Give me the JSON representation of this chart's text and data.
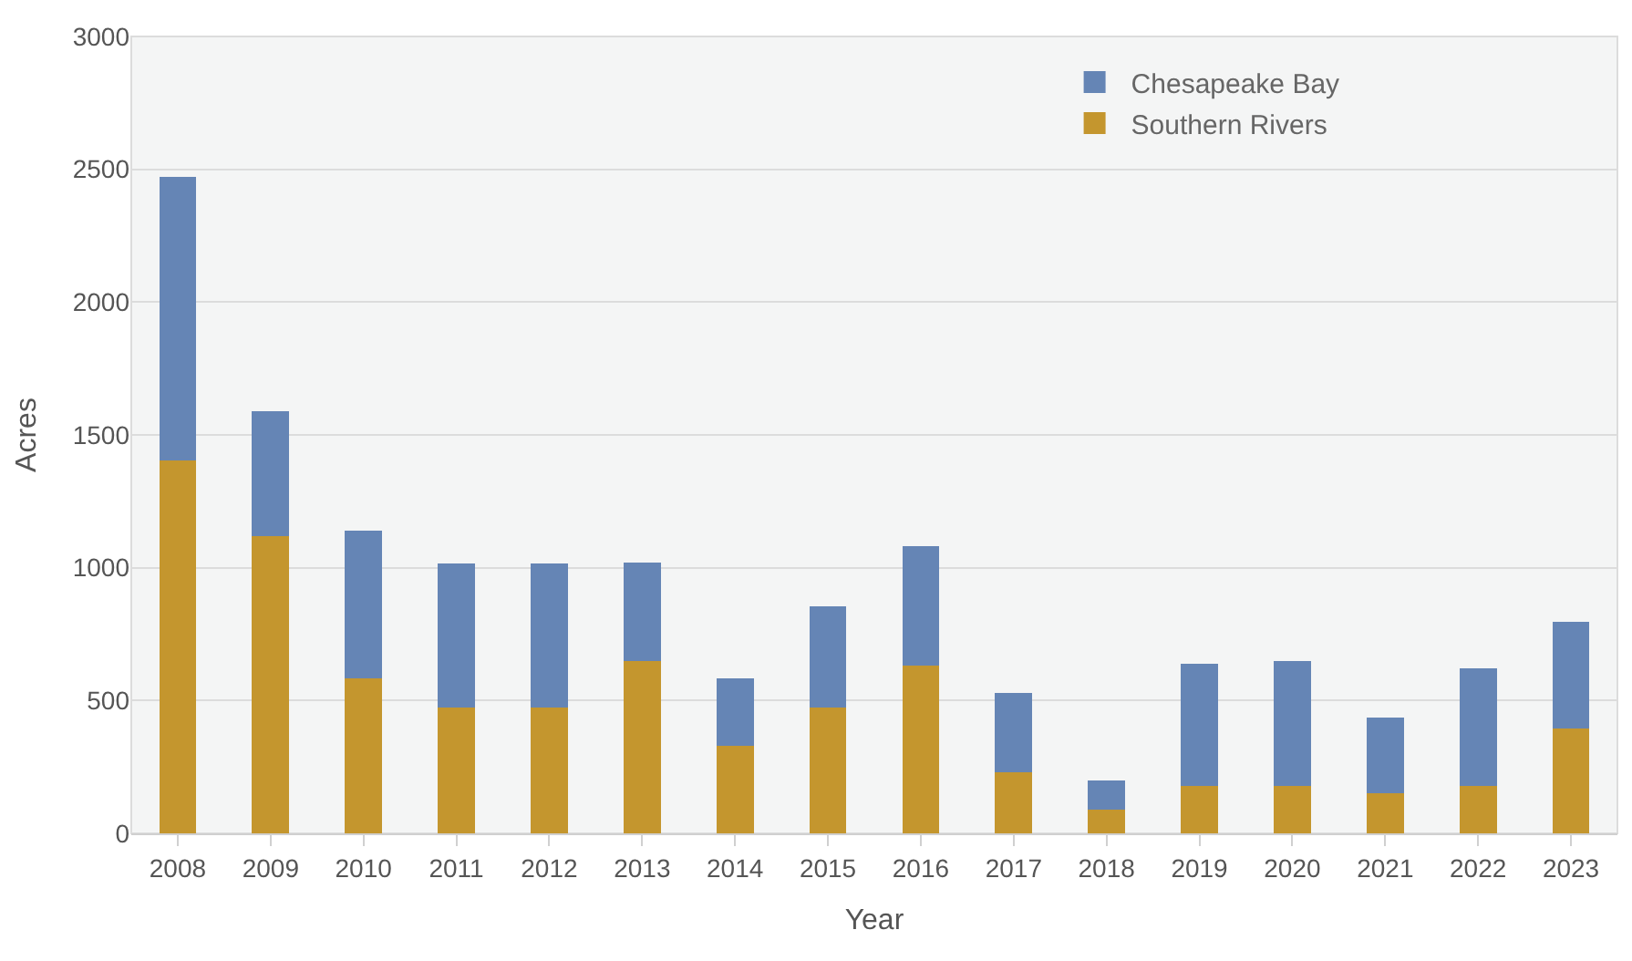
{
  "chart_data": {
    "type": "bar",
    "stacked": true,
    "xlabel": "Year",
    "ylabel": "Acres",
    "categories": [
      "2008",
      "2009",
      "2010",
      "2011",
      "2012",
      "2013",
      "2014",
      "2015",
      "2016",
      "2017",
      "2018",
      "2019",
      "2020",
      "2021",
      "2022",
      "2023"
    ],
    "series": [
      {
        "name": "Southern Rivers",
        "color": "#c4962e",
        "values": [
          1405,
          1120,
          585,
          475,
          475,
          650,
          330,
          475,
          630,
          230,
          90,
          180,
          180,
          150,
          180,
          395
        ]
      },
      {
        "name": "Chesapeake Bay",
        "color": "#6585b5",
        "values": [
          1065,
          470,
          555,
          540,
          540,
          370,
          255,
          380,
          450,
          300,
          110,
          460,
          470,
          285,
          440,
          400
        ]
      }
    ],
    "ylim": [
      0,
      3000
    ],
    "yticks": [
      0,
      500,
      1000,
      1500,
      2000,
      2500,
      3000
    ],
    "grid": "y",
    "legend": "top right"
  }
}
